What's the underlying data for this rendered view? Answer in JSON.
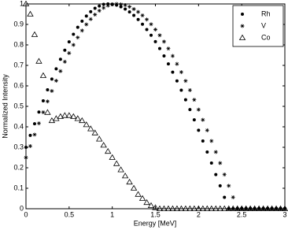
{
  "chart_data": {
    "type": "scatter",
    "xlabel": "Energy [MeV]",
    "ylabel": "Normalized Intensity",
    "xlim": [
      0,
      3
    ],
    "ylim": [
      0,
      1
    ],
    "xticks": [
      0,
      0.5,
      1,
      1.5,
      2,
      2.5,
      3
    ],
    "yticks": [
      0,
      0.1,
      0.2,
      0.3,
      0.4,
      0.5,
      0.6,
      0.7,
      0.8,
      0.9,
      1
    ],
    "grid": false,
    "legend": "upper right",
    "x": [
      0,
      0.05,
      0.1,
      0.15,
      0.2,
      0.25,
      0.3,
      0.35,
      0.4,
      0.45,
      0.5,
      0.55,
      0.6,
      0.65,
      0.7,
      0.75,
      0.8,
      0.85,
      0.9,
      0.95,
      1,
      1.05,
      1.1,
      1.15,
      1.2,
      1.25,
      1.3,
      1.35,
      1.4,
      1.45,
      1.5,
      1.55,
      1.6,
      1.65,
      1.7,
      1.75,
      1.8,
      1.85,
      1.9,
      1.95,
      2,
      2.05,
      2.1,
      2.15,
      2.2,
      2.25,
      2.3,
      2.35,
      2.4,
      2.45,
      2.5,
      2.55,
      2.6,
      2.65,
      2.7,
      2.75,
      2.8,
      2.85,
      2.9,
      2.95,
      3
    ],
    "series": [
      {
        "name": "Rh",
        "marker": "dot",
        "color": "#000000",
        "values": [
          0.3,
          0.358,
          0.415,
          0.472,
          0.527,
          0.581,
          0.633,
          0.683,
          0.73,
          0.774,
          0.815,
          0.852,
          0.886,
          0.916,
          0.941,
          0.962,
          0.979,
          0.99,
          0.998,
          1.0,
          0.998,
          0.994,
          0.986,
          0.975,
          0.961,
          0.944,
          0.924,
          0.901,
          0.875,
          0.847,
          0.816,
          0.782,
          0.746,
          0.707,
          0.667,
          0.624,
          0.579,
          0.532,
          0.484,
          0.434,
          0.383,
          0.331,
          0.277,
          0.223,
          0.167,
          0.112,
          0.056,
          0,
          0,
          0,
          0,
          0,
          0,
          0,
          0,
          0,
          0,
          0,
          0,
          0,
          0
        ]
      },
      {
        "name": "V",
        "marker": "asterisk",
        "color": "#000000",
        "values": [
          0.25,
          0.306,
          0.362,
          0.417,
          0.471,
          0.524,
          0.575,
          0.625,
          0.672,
          0.718,
          0.76,
          0.8,
          0.836,
          0.87,
          0.9,
          0.926,
          0.948,
          0.967,
          0.981,
          0.992,
          0.998,
          1.0,
          0.998,
          0.994,
          0.986,
          0.975,
          0.961,
          0.944,
          0.924,
          0.901,
          0.875,
          0.847,
          0.816,
          0.782,
          0.746,
          0.707,
          0.667,
          0.624,
          0.579,
          0.532,
          0.484,
          0.434,
          0.383,
          0.331,
          0.277,
          0.223,
          0.167,
          0.112,
          0.056,
          0,
          0,
          0,
          0,
          0,
          0,
          0,
          0,
          0,
          0,
          0,
          0
        ]
      },
      {
        "name": "Co",
        "marker": "triangle",
        "color": "#000000",
        "values": [
          1.0,
          0.95,
          0.85,
          0.72,
          0.65,
          0.47,
          0.43,
          0.44,
          0.45,
          0.455,
          0.455,
          0.45,
          0.44,
          0.43,
          0.41,
          0.39,
          0.37,
          0.34,
          0.31,
          0.28,
          0.25,
          0.22,
          0.19,
          0.16,
          0.13,
          0.1,
          0.07,
          0.05,
          0.03,
          0.015,
          0.005,
          0,
          0,
          0,
          0,
          0,
          0,
          0,
          0,
          0,
          0,
          0,
          0,
          0,
          0,
          0,
          0,
          0,
          0,
          0,
          0,
          0,
          0,
          0,
          0,
          0,
          0,
          0,
          0,
          0,
          0
        ]
      }
    ]
  }
}
